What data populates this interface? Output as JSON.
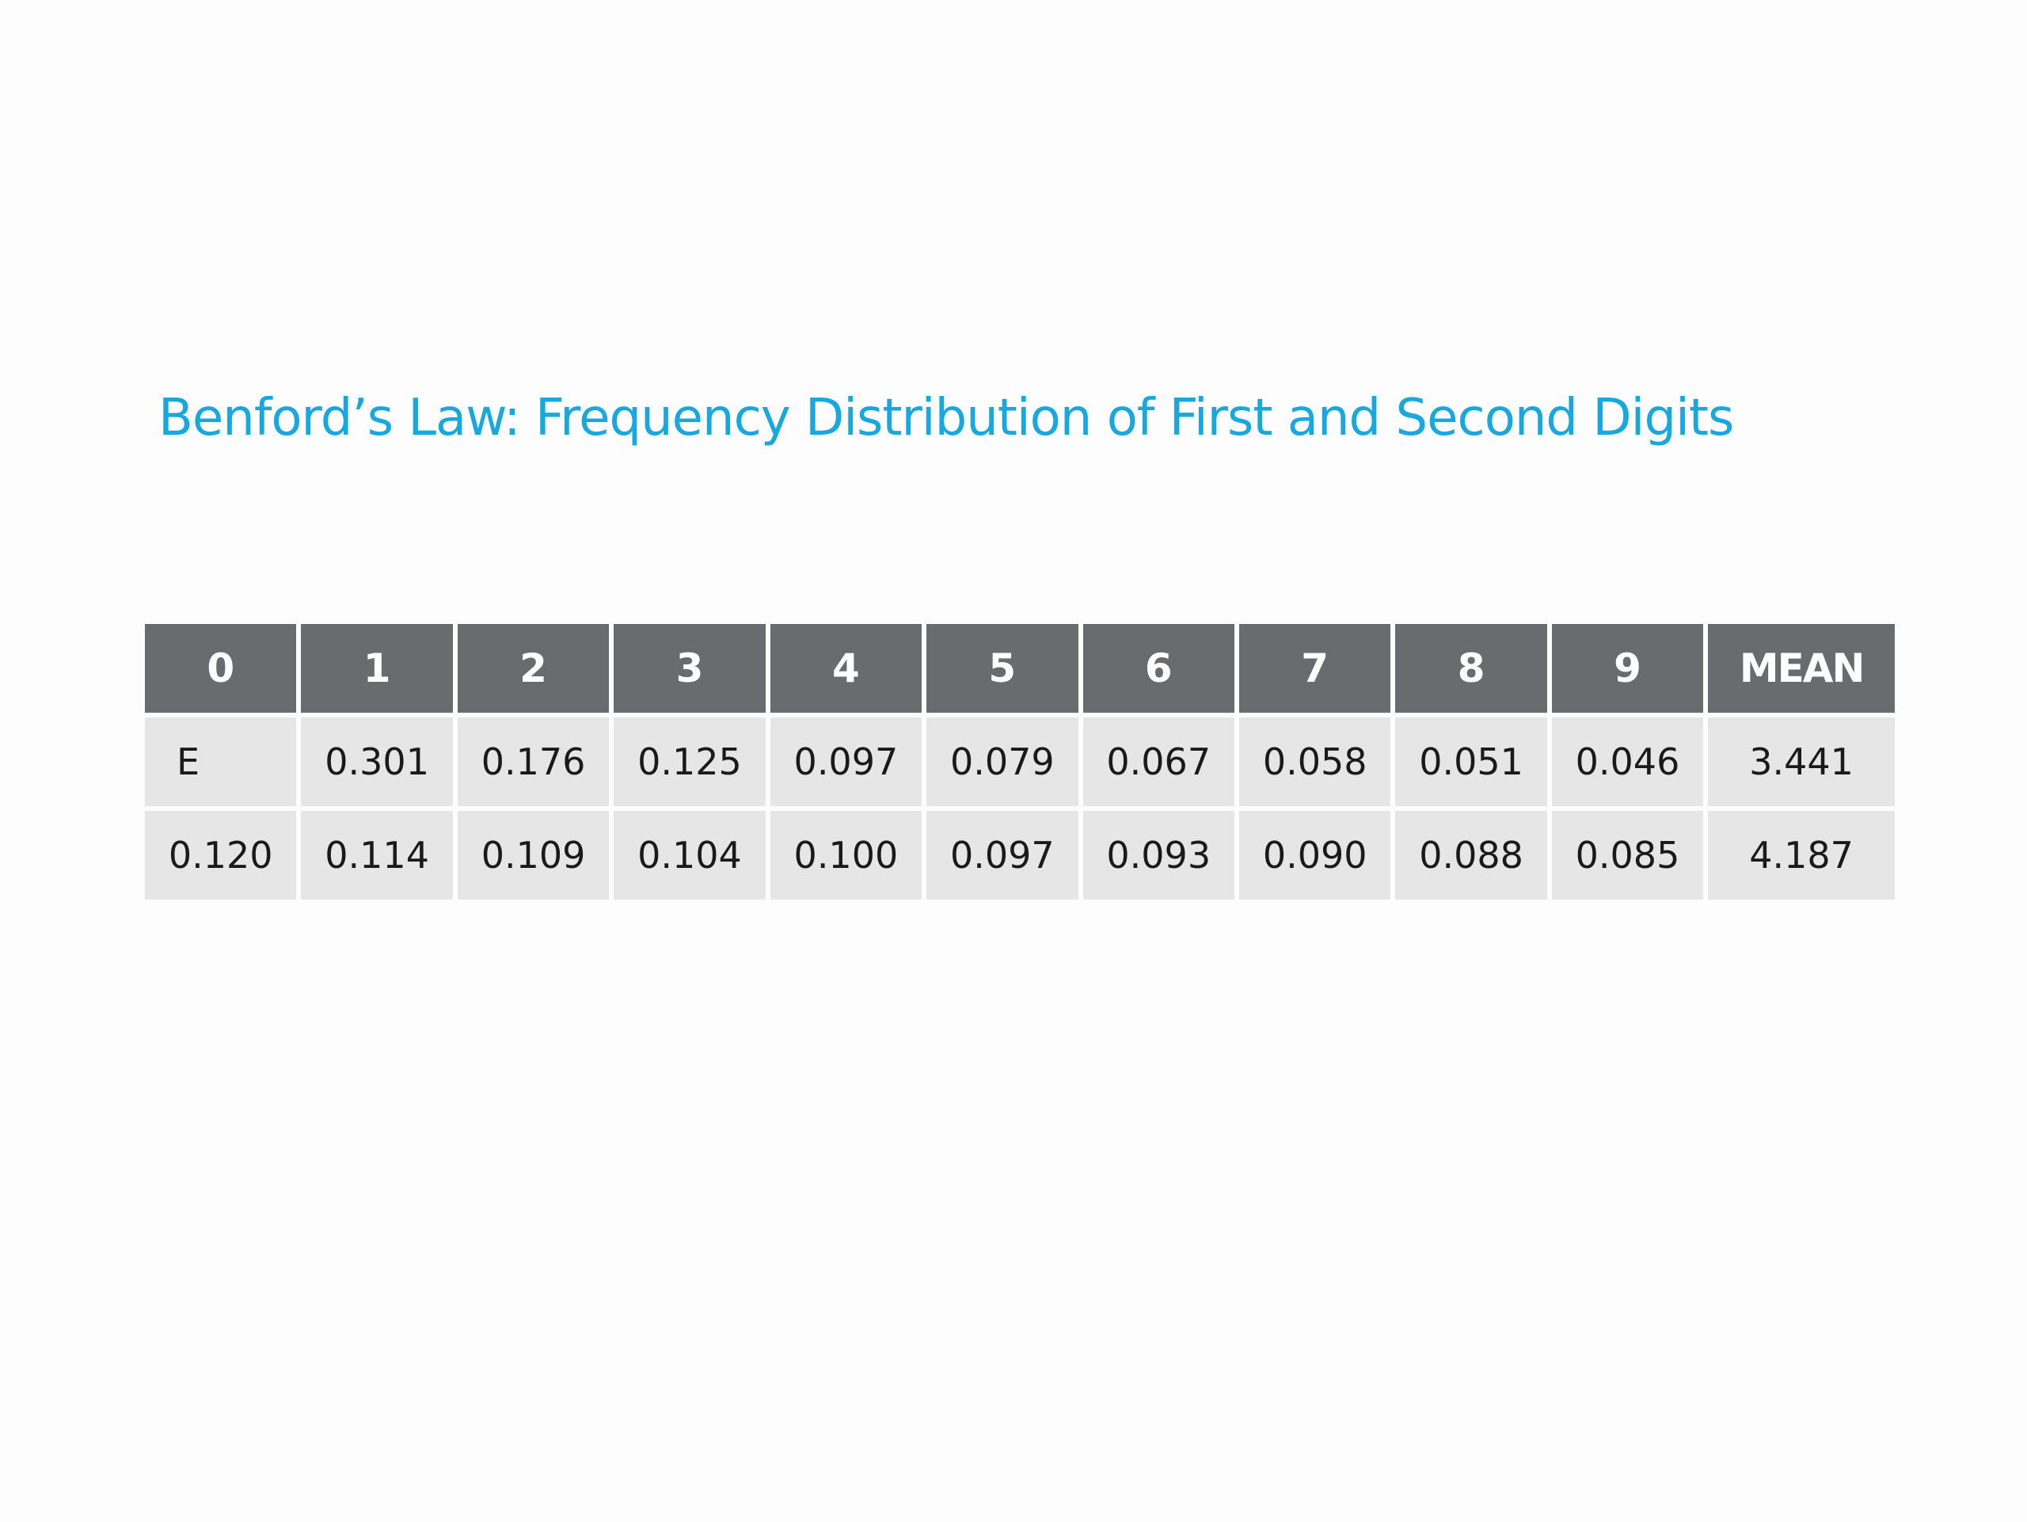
{
  "title": "Benford’s Law: Frequency Distribution of First and Second Digits",
  "colors": {
    "title": "#18a8e0",
    "header_bg": "#6a6b6e",
    "header_text": "#ffffff",
    "cell_bg": "#e6e6e7",
    "cell_text": "#1a1a1a"
  },
  "table": {
    "headers": [
      "0",
      "1",
      "2",
      "3",
      "4",
      "5",
      "6",
      "7",
      "8",
      "9",
      "MEAN"
    ],
    "rows": [
      [
        "E",
        "0.301",
        "0.176",
        "0.125",
        "0.097",
        "0.079",
        "0.067",
        "0.058",
        "0.051",
        "0.046",
        "3.441"
      ],
      [
        "0.120",
        "0.114",
        "0.109",
        "0.104",
        "0.100",
        "0.097",
        "0.093",
        "0.090",
        "0.088",
        "0.085",
        "4.187"
      ]
    ]
  }
}
